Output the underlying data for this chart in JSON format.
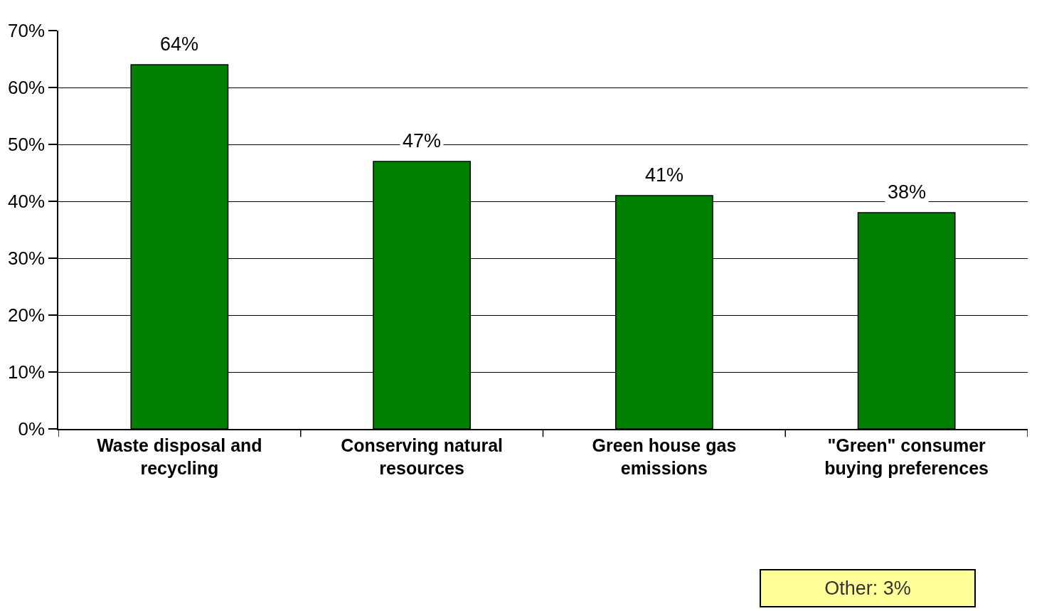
{
  "chart_data": {
    "type": "bar",
    "categories": [
      "Waste disposal and recycling",
      "Conserving natural resources",
      "Green house gas emissions",
      "\"Green\" consumer buying preferences"
    ],
    "values": [
      64,
      47,
      41,
      38
    ],
    "value_labels": [
      "64%",
      "47%",
      "41%",
      "38%"
    ],
    "color": "#008000",
    "ylim": [
      0,
      70
    ],
    "yticks": [
      {
        "value": 0,
        "label": "0%"
      },
      {
        "value": 10,
        "label": "10%"
      },
      {
        "value": 20,
        "label": "20%"
      },
      {
        "value": 30,
        "label": "30%"
      },
      {
        "value": 40,
        "label": "40%"
      },
      {
        "value": 50,
        "label": "50%"
      },
      {
        "value": 60,
        "label": "60%"
      },
      {
        "value": 70,
        "label": "70%"
      }
    ],
    "grid": "y",
    "annotations": [
      "Other: 3%"
    ]
  }
}
